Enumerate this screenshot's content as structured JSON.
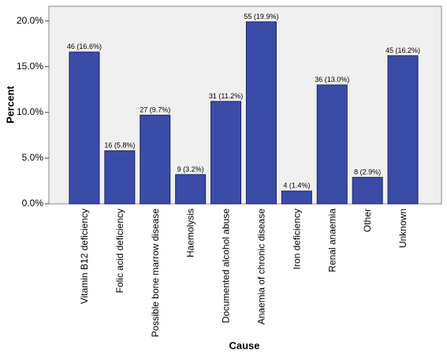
{
  "chart_data": {
    "type": "bar",
    "categories": [
      "Vitamin B12 deficiency",
      "Folic acid deficiency",
      "Possible bone marrow disease",
      "Haemolysis",
      "Documented alcohol abuse",
      "Anaemia of chronic disease",
      "Iron deficiency",
      "Renal anaemia",
      "Other",
      "Unknown"
    ],
    "values": [
      16.6,
      5.8,
      9.7,
      3.2,
      11.2,
      19.9,
      1.4,
      13.0,
      2.9,
      16.2
    ],
    "value_labels": [
      "46 (16.6%)",
      "16 (5.8%)",
      "27 (9.7%)",
      "9 (3.2%)",
      "31 (11.2%)",
      "55 (19.9%)",
      "4 (1.4%)",
      "36 (13.0%)",
      "8 (2.9%)",
      "45 (16.2%)"
    ],
    "color": "#3b4ba8",
    "x_label": "Cause",
    "y_label": "Percent",
    "ylim": [
      0,
      21.6
    ],
    "yticks": [
      {
        "value": 0,
        "label": "0.0%"
      },
      {
        "value": 5,
        "label": "5.0%"
      },
      {
        "value": 10,
        "label": "10.0%"
      },
      {
        "value": 15,
        "label": "15.0%"
      },
      {
        "value": 20,
        "label": "20.0%"
      }
    ]
  }
}
